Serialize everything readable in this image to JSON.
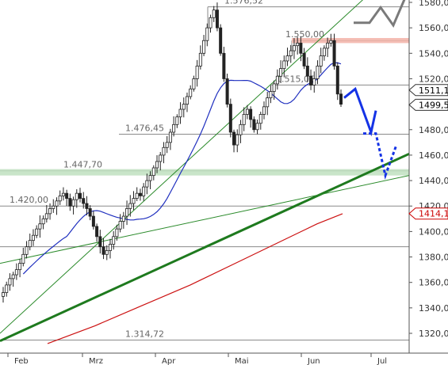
{
  "chart_data": {
    "type": "candlestick",
    "x_tick_labels": [
      "Feb",
      "Mrz",
      "Apr",
      "Mai",
      "Jun",
      "Jul"
    ],
    "y_ticks": [
      1320,
      1340,
      1360,
      1380,
      1400,
      1420,
      1440,
      1460,
      1480,
      1500,
      1520,
      1540,
      1560,
      1580
    ],
    "y_tick_labels": [
      "1320,00",
      "1340,00",
      "1360,00",
      "1380,00",
      "1400,00",
      "1420,00",
      "1440,00",
      "1460,00",
      "1480,00",
      "1500,00",
      "1520,00",
      "1540,00",
      "1560,00",
      "1580,00"
    ],
    "ylim": [
      1310,
      1588
    ],
    "grid": false,
    "price_badges": [
      {
        "value": 1511.1,
        "label": "1511,1"
      },
      {
        "value": 1499.5,
        "label": "1499,5"
      },
      {
        "value": 1414.1,
        "label": "1414,1",
        "color": "#cc0000"
      }
    ],
    "horizontal_levels": [
      {
        "value": 1576.52,
        "label": "1.576,52"
      },
      {
        "value": 1550.0,
        "label": "1.550,00"
      },
      {
        "value": 1515.05,
        "label": "1.515,05"
      },
      {
        "value": 1476.45,
        "label": "1.476,45"
      },
      {
        "value": 1447.7,
        "label": "1.447,70"
      },
      {
        "value": 1420.0,
        "label": "1.420,00"
      },
      {
        "value": 1388.0,
        "label": ""
      },
      {
        "value": 1314.72,
        "label": "1.314,72"
      }
    ],
    "price_series": [
      1352,
      1358,
      1363,
      1366,
      1370,
      1375,
      1382,
      1388,
      1393,
      1397,
      1402,
      1406,
      1410,
      1414,
      1418,
      1420,
      1424,
      1428,
      1430,
      1426,
      1420,
      1425,
      1430,
      1426,
      1422,
      1418,
      1412,
      1404,
      1396,
      1388,
      1382,
      1385,
      1390,
      1396,
      1402,
      1408,
      1412,
      1418,
      1422,
      1426,
      1430,
      1428,
      1435,
      1440,
      1444,
      1450,
      1455,
      1460,
      1466,
      1470,
      1478,
      1484,
      1490,
      1496,
      1500,
      1506,
      1512,
      1520,
      1530,
      1540,
      1550,
      1560,
      1568,
      1574,
      1560,
      1540,
      1520,
      1500,
      1478,
      1468,
      1476,
      1484,
      1492,
      1496,
      1488,
      1480,
      1485,
      1492,
      1498,
      1505,
      1510,
      1516,
      1522,
      1528,
      1534,
      1538,
      1542,
      1546,
      1548,
      1540,
      1530,
      1522,
      1515,
      1520,
      1530,
      1538,
      1544,
      1548,
      1550,
      1530,
      1508,
      1500
    ]
  }
}
